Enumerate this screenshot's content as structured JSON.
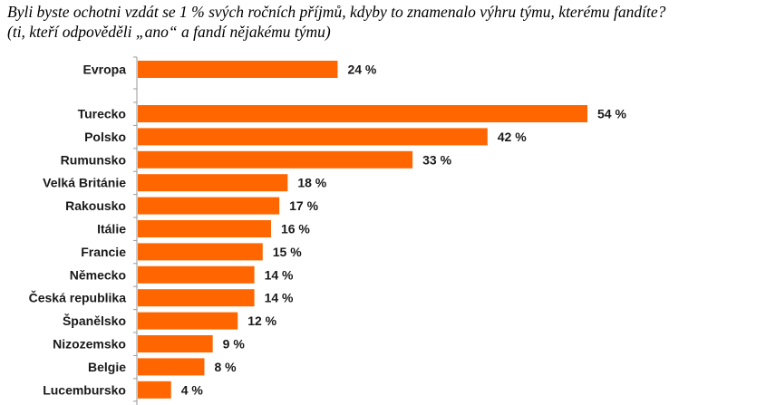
{
  "title": {
    "line1": "Byli byste ochotni vzdát se 1 % svých ročních příjmů, kdyby to znamenalo výhru týmu, kterému fandíte?",
    "line2": "(ti, kteří odpověděli „ano“ a fandí nějakému týmu)"
  },
  "colors": {
    "bar": "#FF6600",
    "axis": "#999999",
    "text": "#1a1a1a"
  },
  "chart_data": {
    "type": "bar",
    "orientation": "horizontal",
    "title": "Byli byste ochotni vzdát se 1 % svých ročních příjmů, kdyby to znamenalo výhru týmu, kterému fandíte?",
    "subtitle": "(ti, kteří odpověděli „ano“ a fandí nějakému týmu)",
    "categories": [
      "Evropa",
      "Turecko",
      "Polsko",
      "Rumunsko",
      "Velká Británie",
      "Rakousko",
      "Itálie",
      "Francie",
      "Německo",
      "Česká republika",
      "Španělsko",
      "Nizozemsko",
      "Belgie",
      "Lucembursko"
    ],
    "values": [
      24,
      54,
      42,
      33,
      18,
      17,
      16,
      15,
      14,
      14,
      12,
      9,
      8,
      4
    ],
    "value_labels": [
      "24 %",
      "54 %",
      "42 %",
      "33 %",
      "18 %",
      "17 %",
      "16 %",
      "15 %",
      "14 %",
      "14 %",
      "12 %",
      "9 %",
      "8 %",
      "4 %"
    ],
    "unit": "%",
    "xlim": [
      0,
      54
    ],
    "grid": false,
    "legend": "none"
  }
}
